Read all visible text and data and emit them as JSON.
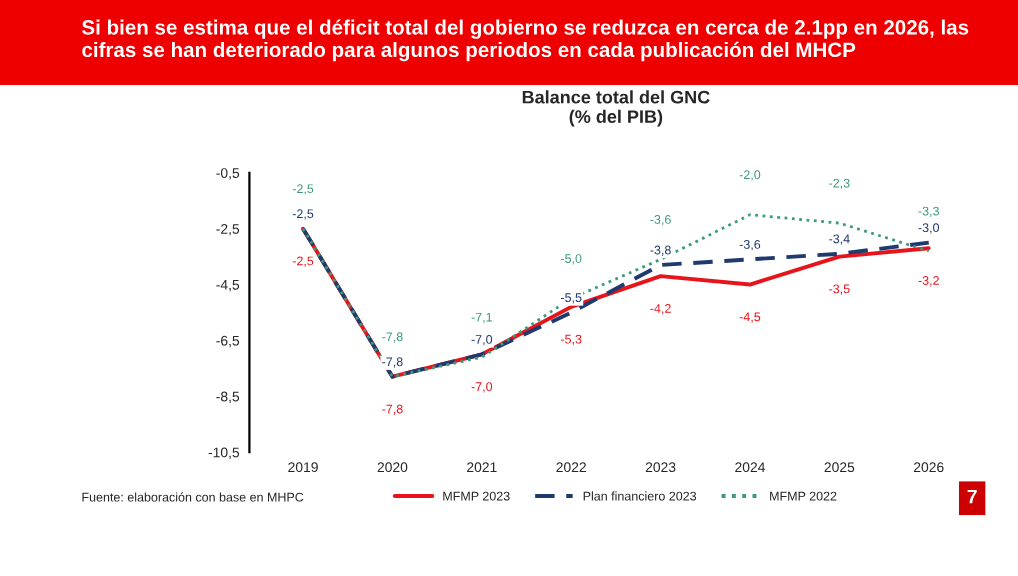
{
  "chart_data": {
    "type": "line",
    "title": "Balance total del GNC",
    "subtitle": "(% del PIB)",
    "annotations": [
      "Si bien se estima que el déficit total del gobierno se reduzca en cerca de 2.1pp en 2026, las cifras se han deteriorado para algunos periodos en cada publicación del MHCP",
      "Fuente: elaboración con base en MHPC",
      "7"
    ],
    "categories": [
      "2019",
      "2020",
      "2021",
      "2022",
      "2023",
      "2024",
      "2025",
      "2026"
    ],
    "series": [
      {
        "name": "MFMP 2023",
        "color": "#e8141c",
        "line_style": "solid",
        "values": [
          -2.5,
          -7.8,
          -7.0,
          -5.3,
          -4.2,
          -4.5,
          -3.5,
          -3.2
        ],
        "value_labels": [
          "-2,5",
          "-7,8",
          "-7,0",
          "-5,3",
          "-4,2",
          "-4,5",
          "-3,5",
          "-3,2"
        ]
      },
      {
        "name": "Plan financiero 2023",
        "color": "#1f3a6e",
        "line_style": "dashed",
        "values": [
          -2.5,
          -7.8,
          -7.0,
          -5.5,
          -3.8,
          -3.6,
          -3.4,
          -3.0
        ],
        "value_labels": [
          "-2,5",
          "-7,8",
          "-7,0",
          "-5,5",
          "-3,8",
          "-3,6",
          "-3,4",
          "-3,0"
        ]
      },
      {
        "name": "MFMP 2022",
        "color": "#3a9a7a",
        "line_style": "dotted",
        "values": [
          -2.5,
          -7.8,
          -7.1,
          -5.0,
          -3.6,
          -2.0,
          -2.3,
          -3.3
        ],
        "value_labels": [
          "-2,5",
          "-7,8",
          "-7,1",
          "-5,0",
          "-3,6",
          "-2,0",
          "-2,3",
          "-3,3"
        ]
      }
    ],
    "ylim": [
      -10.5,
      -0.5
    ],
    "yticks": [
      {
        "value": -0.5,
        "label": "-0,5"
      },
      {
        "value": -2.5,
        "label": "-2,5"
      },
      {
        "value": -4.5,
        "label": "-4,5"
      },
      {
        "value": -6.5,
        "label": "-6,5"
      },
      {
        "value": -8.5,
        "label": "-8,5"
      },
      {
        "value": -10.5,
        "label": "-10,5"
      }
    ],
    "grid": false,
    "legend": "bottom",
    "marker": "none"
  }
}
